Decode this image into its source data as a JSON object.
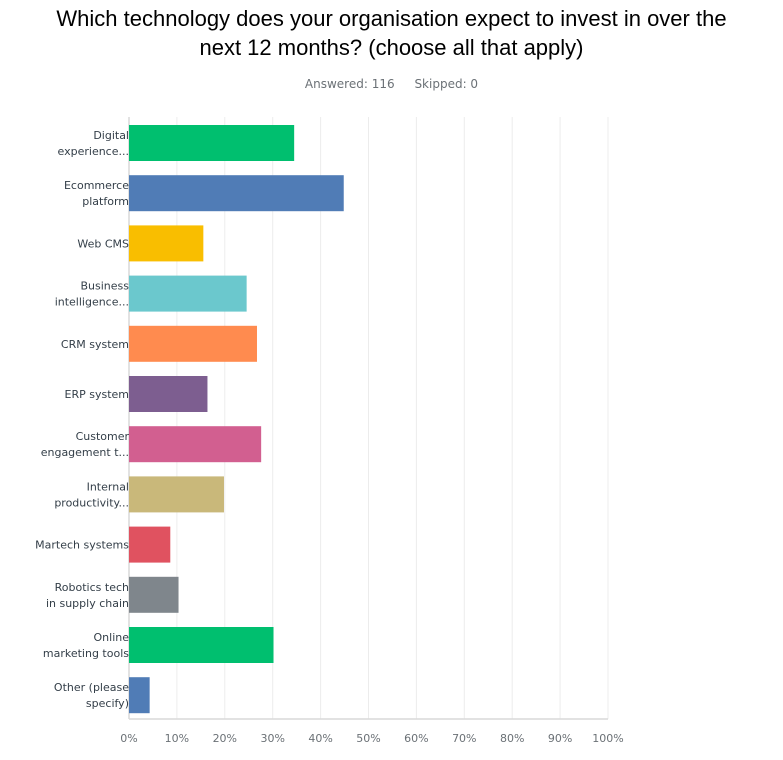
{
  "chart_data": {
    "type": "bar",
    "orientation": "horizontal",
    "title": "Which technology does your organisation expect to invest in over the next 12 months? (choose all that apply)",
    "title_lines": [
      "Which technology does your organisation expect to invest in over the",
      "next 12 months? (choose all that apply)"
    ],
    "answered": "Answered: 116",
    "skipped": "Skipped: 0",
    "categories": [
      [
        "Digital",
        "experience..."
      ],
      [
        "Ecommerce",
        "platform"
      ],
      [
        "Web CMS"
      ],
      [
        "Business",
        "intelligence..."
      ],
      [
        "CRM system"
      ],
      [
        "ERP system"
      ],
      [
        "Customer",
        "engagement t..."
      ],
      [
        "Internal",
        "productivity..."
      ],
      [
        "Martech systems"
      ],
      [
        "Robotics tech",
        "in supply chain"
      ],
      [
        "Online",
        "marketing tools"
      ],
      [
        "Other (please",
        "specify)"
      ]
    ],
    "values": [
      34.48,
      44.83,
      15.52,
      24.56,
      26.72,
      16.38,
      27.59,
      19.83,
      8.62,
      10.34,
      30.17,
      4.31
    ],
    "colors": [
      "#00bf6f",
      "#507cb6",
      "#f9be00",
      "#6bc8cd",
      "#ff8b4f",
      "#7d5e90",
      "#d25f90",
      "#c9b87a",
      "#e05260",
      "#7f868c",
      "#00bf6f",
      "#507cb6"
    ],
    "xlim": [
      0,
      100
    ],
    "xticks": [
      "0%",
      "10%",
      "20%",
      "30%",
      "40%",
      "50%",
      "60%",
      "70%",
      "80%",
      "90%",
      "100%"
    ],
    "grid": true,
    "xlabel": "",
    "ylabel": ""
  }
}
